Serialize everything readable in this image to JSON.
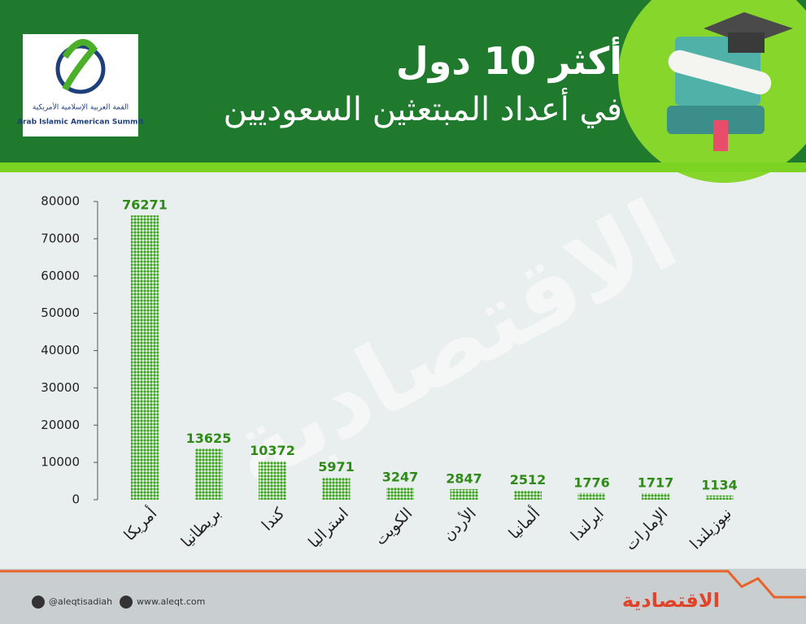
{
  "header": {
    "title": "أكثر 10 دول",
    "subtitle": "في أعداد المبتعثين السعوديين",
    "logo_arabic": "القمة العربية الإسلامية الأمريكية",
    "logo_english": "Arab Islamic American Summit"
  },
  "watermark": "الاقتصادية",
  "chart_data": {
    "type": "bar",
    "categories": [
      "أمريكا",
      "بريطانيا",
      "كندا",
      "استراليا",
      "الكويت",
      "الأردن",
      "ألمانيا",
      "ايرلندا",
      "الإمارات",
      "نيوزيلندا"
    ],
    "values": [
      76271,
      13625,
      10372,
      5971,
      3247,
      2847,
      2512,
      1776,
      1717,
      1134
    ],
    "color": "#3aa31a",
    "ylim": [
      0,
      80000
    ],
    "yticks": [
      0,
      10000,
      20000,
      30000,
      40000,
      50000,
      60000,
      70000,
      80000
    ]
  },
  "footer": {
    "twitter": "@aleqtisadiah",
    "website": "www.aleqt.com",
    "brand": "الاقتصادية"
  }
}
